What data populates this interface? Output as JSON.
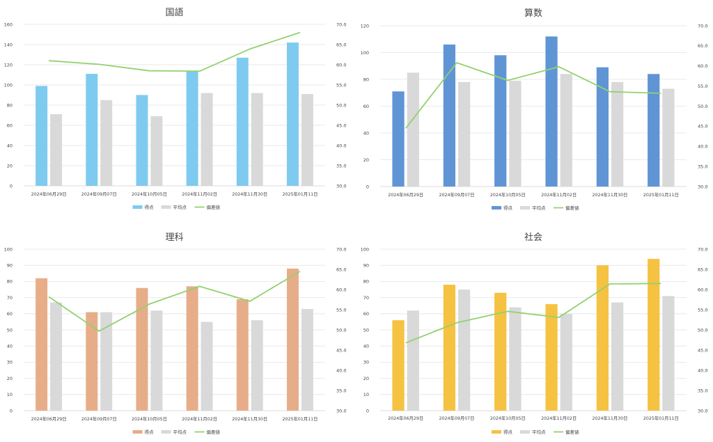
{
  "colors": {
    "score": [
      "#7ecbef",
      "#5f95d5",
      "#e7ad88",
      "#f5c242"
    ],
    "average": "#d9d9d9",
    "deviation": "#92d16f",
    "grid": "#e3e3e3",
    "text": "#444444"
  },
  "chart_data": [
    {
      "type": "bar",
      "title": "国語",
      "categories": [
        "2024年06月29日",
        "2024年09月07日",
        "2024年10月05日",
        "2024年11月02日",
        "2024年11月30日",
        "2025年01月11日"
      ],
      "series": [
        {
          "name": "得点",
          "type": "bar",
          "axis": "left",
          "values": [
            99,
            111,
            90,
            114,
            127,
            142
          ]
        },
        {
          "name": "平均点",
          "type": "bar",
          "axis": "left",
          "values": [
            71,
            85,
            69,
            92,
            92,
            91
          ]
        },
        {
          "name": "偏差値",
          "type": "line",
          "axis": "right",
          "values": [
            61.0,
            60.1,
            58.5,
            58.4,
            63.9,
            68.0
          ]
        }
      ],
      "ylim": [
        0,
        160
      ],
      "yticks": [
        "0",
        "20",
        "40",
        "60",
        "80",
        "100",
        "120",
        "140",
        "160"
      ],
      "y2lim": [
        30,
        70
      ],
      "y2ticks": [
        "30.0",
        "35.0",
        "40.0",
        "45.0",
        "50.0",
        "55.0",
        "60.0",
        "65.0",
        "70.0"
      ],
      "legend_position": "bottom"
    },
    {
      "type": "bar",
      "title": "算数",
      "categories": [
        "2024年06月29日",
        "2024年09月07日",
        "2024年10月05日",
        "2024年11月02日",
        "2024年11月30日",
        "2025年01月11日"
      ],
      "series": [
        {
          "name": "得点",
          "type": "bar",
          "axis": "left",
          "values": [
            71,
            106,
            98,
            112,
            89,
            84
          ]
        },
        {
          "name": "平均点",
          "type": "bar",
          "axis": "left",
          "values": [
            85,
            78,
            79,
            84,
            78,
            73
          ]
        },
        {
          "name": "偏差値",
          "type": "line",
          "axis": "right",
          "values": [
            44.5,
            60.8,
            56.4,
            59.8,
            53.6,
            53.2
          ]
        }
      ],
      "ylim": [
        0,
        120
      ],
      "yticks": [
        "0",
        "20",
        "40",
        "60",
        "80",
        "100",
        "120"
      ],
      "y2lim": [
        30,
        70
      ],
      "y2ticks": [
        "30.0",
        "35.0",
        "40.0",
        "45.0",
        "50.0",
        "55.0",
        "60.0",
        "65.0",
        "70.0"
      ],
      "legend_position": "bottom"
    },
    {
      "type": "bar",
      "title": "理科",
      "categories": [
        "2024年06月29日",
        "2024年09月07日",
        "2024年10月05日",
        "2024年11月02日",
        "2024年11月30日",
        "2025年01月11日"
      ],
      "series": [
        {
          "name": "得点",
          "type": "bar",
          "axis": "left",
          "values": [
            82,
            61,
            76,
            77,
            69,
            88
          ]
        },
        {
          "name": "平均点",
          "type": "bar",
          "axis": "left",
          "values": [
            67,
            61,
            62,
            55,
            56,
            63
          ]
        },
        {
          "name": "偏差値",
          "type": "line",
          "axis": "right",
          "values": [
            58.2,
            49.7,
            56.4,
            60.8,
            57.1,
            64.5
          ]
        }
      ],
      "ylim": [
        0,
        100
      ],
      "yticks": [
        "0",
        "10",
        "20",
        "30",
        "40",
        "50",
        "60",
        "70",
        "80",
        "90",
        "100"
      ],
      "y2lim": [
        30,
        70
      ],
      "y2ticks": [
        "30.0",
        "35.0",
        "40.0",
        "45.0",
        "50.0",
        "55.0",
        "60.0",
        "65.0",
        "70.0"
      ],
      "legend_position": "bottom"
    },
    {
      "type": "bar",
      "title": "社会",
      "categories": [
        "2024年06月29日",
        "2024年09月07日",
        "2024年10月05日",
        "2024年11月02日",
        "2024年11月30日",
        "2025年01月11日"
      ],
      "series": [
        {
          "name": "得点",
          "type": "bar",
          "axis": "left",
          "values": [
            56,
            78,
            73,
            66,
            90,
            94
          ]
        },
        {
          "name": "平均点",
          "type": "bar",
          "axis": "left",
          "values": [
            62,
            75,
            64,
            60,
            67,
            71
          ]
        },
        {
          "name": "偏差値",
          "type": "line",
          "axis": "right",
          "values": [
            46.8,
            51.8,
            54.6,
            53.1,
            61.4,
            61.5
          ]
        }
      ],
      "ylim": [
        0,
        100
      ],
      "yticks": [
        "0",
        "10",
        "20",
        "30",
        "40",
        "50",
        "60",
        "70",
        "80",
        "90",
        "100"
      ],
      "y2lim": [
        30,
        70
      ],
      "y2ticks": [
        "30.0",
        "35.0",
        "40.0",
        "45.0",
        "50.0",
        "55.0",
        "60.0",
        "65.0",
        "70.0"
      ],
      "legend_position": "bottom"
    }
  ]
}
